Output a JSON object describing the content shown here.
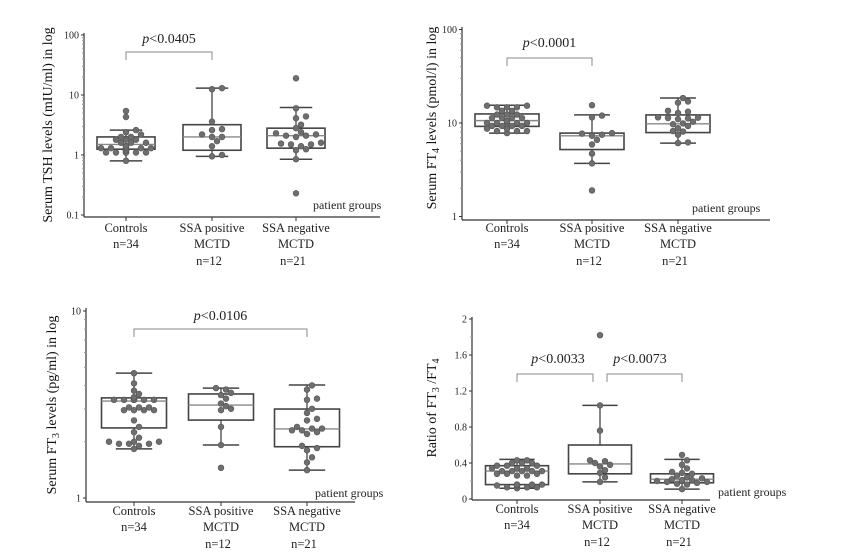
{
  "chart_data": [
    {
      "type": "box",
      "yscale": "log",
      "ylabel": {
        "pre": "Serum TSH levels  (mIU/ml) in log",
        "sub": "",
        "post": "",
        "sub2": "",
        "post2": ""
      },
      "xlabel": "patient groups",
      "ylim": [
        0.1,
        100
      ],
      "yticks": [
        "0.1",
        "1",
        "10",
        "100"
      ],
      "ytick_values": [
        0.1,
        1,
        10,
        100
      ],
      "categories": [
        {
          "lines": [
            "Controls",
            "n=34"
          ]
        },
        {
          "lines": [
            "SSA positive",
            "MCTD",
            "n=12"
          ]
        },
        {
          "lines": [
            "SSA negative",
            "MCTD",
            "n=21"
          ]
        }
      ],
      "boxes": [
        {
          "q1": 1.25,
          "median": 1.5,
          "q3": 2.0,
          "whisker_low": 0.8,
          "whisker_high": 2.6,
          "points": [
            0.8,
            1.1,
            1.1,
            1.1,
            1.1,
            1.1,
            1.1,
            1.2,
            1.2,
            1.2,
            1.2,
            1.2,
            1.3,
            1.3,
            1.3,
            1.3,
            1.3,
            1.4,
            1.4,
            1.4,
            1.4,
            1.6,
            1.6,
            1.6,
            1.8,
            1.8,
            1.8,
            2.0,
            2.0,
            2.2,
            2.4,
            2.6,
            4.3,
            5.4
          ]
        },
        {
          "q1": 1.2,
          "median": 2.0,
          "q3": 3.2,
          "whisker_low": 0.95,
          "whisker_high": 13,
          "points": [
            0.95,
            1.0,
            1.4,
            1.7,
            2.0,
            2.0,
            2.2,
            2.6,
            2.7,
            3.6,
            12.5,
            13
          ]
        },
        {
          "q1": 1.3,
          "median": 2.1,
          "q3": 2.8,
          "whisker_low": 0.85,
          "whisker_high": 6.2,
          "points": [
            0.23,
            0.85,
            1.2,
            1.25,
            1.4,
            1.5,
            1.5,
            1.55,
            1.6,
            2.0,
            2.1,
            2.1,
            2.2,
            2.3,
            2.4,
            2.8,
            3.2,
            4.1,
            4.4,
            6.0,
            19
          ]
        }
      ],
      "comparisons": [
        {
          "from": 0,
          "to": 1,
          "label_p": "p",
          "label_rest": "<0.0405"
        }
      ]
    },
    {
      "type": "box",
      "yscale": "log",
      "ylabel": {
        "pre": "Serum FT",
        "sub": "4",
        "post": " levels  (pmol/l) in log",
        "sub2": "",
        "post2": ""
      },
      "xlabel": "patient groups",
      "ylim": [
        1,
        100
      ],
      "yticks": [
        "1",
        "10",
        "100"
      ],
      "ytick_values": [
        1,
        10,
        100
      ],
      "categories": [
        {
          "lines": [
            "Controls",
            "n=34"
          ]
        },
        {
          "lines": [
            "SSA positive",
            "MCTD",
            "n=12"
          ]
        },
        {
          "lines": [
            "SSA negative",
            "MCTD",
            "n=21"
          ]
        }
      ],
      "boxes": [
        {
          "q1": 9.2,
          "median": 10.6,
          "q3": 12.5,
          "whisker_low": 7.8,
          "whisker_high": 15.5,
          "points": [
            7.8,
            8.2,
            8.2,
            8.2,
            8.7,
            8.7,
            8.7,
            9.3,
            9.3,
            9.3,
            9.3,
            10,
            10,
            10,
            10,
            10,
            10.5,
            10.5,
            10.5,
            10.5,
            11.3,
            11.3,
            11.3,
            11.3,
            12.3,
            12.3,
            12.3,
            13.5,
            13.5,
            14.7,
            14.7,
            14.7,
            15.3,
            15.3
          ]
        },
        {
          "q1": 5.2,
          "median": 7.3,
          "q3": 7.8,
          "whisker_low": 3.7,
          "whisker_high": 12.2,
          "points": [
            1.9,
            3.7,
            4.7,
            5.9,
            6.6,
            7.3,
            7.5,
            7.7,
            7.8,
            11.5,
            12,
            15.5
          ]
        },
        {
          "q1": 7.9,
          "median": 9.8,
          "q3": 12.2,
          "whisker_low": 6.1,
          "whisker_high": 18.5,
          "points": [
            6.1,
            6.2,
            7.5,
            8.1,
            8.2,
            8.8,
            9.3,
            9.7,
            9.9,
            10.3,
            11,
            11.2,
            11.3,
            11.4,
            11.5,
            12.8,
            13.2,
            13.5,
            16.5,
            17,
            18.5
          ]
        }
      ],
      "comparisons": [
        {
          "from": 0,
          "to": 1,
          "label_p": "p",
          "label_rest": "<0.0001"
        }
      ]
    },
    {
      "type": "box",
      "yscale": "log",
      "ylabel": {
        "pre": "Serum FT",
        "sub": "3",
        "post": "  levels (pg/ml) in log",
        "sub2": "",
        "post2": ""
      },
      "xlabel": "patient groups",
      "ylim": [
        1,
        10
      ],
      "yticks": [
        "1",
        "10"
      ],
      "ytick_values": [
        1,
        10
      ],
      "categories": [
        {
          "lines": [
            "Controls",
            "n=34"
          ]
        },
        {
          "lines": [
            "SSA positive",
            "MCTD",
            "n=12"
          ]
        },
        {
          "lines": [
            "SSA negative",
            "MCTD",
            "n=21"
          ]
        }
      ],
      "boxes": [
        {
          "q1": 2.37,
          "median": 3.3,
          "q3": 3.43,
          "whisker_low": 1.83,
          "whisker_high": 4.65,
          "points": [
            1.83,
            1.9,
            1.95,
            1.95,
            1.95,
            2.0,
            2.0,
            2.0,
            2.1,
            2.25,
            2.4,
            2.6,
            2.95,
            2.95,
            2.95,
            2.95,
            3.05,
            3.05,
            3.05,
            3.35,
            3.35,
            3.35,
            3.35,
            3.35,
            3.35,
            3.35,
            3.35,
            3.45,
            3.45,
            3.45,
            3.6,
            3.75,
            4.1,
            4.65
          ]
        },
        {
          "q1": 2.61,
          "median": 3.14,
          "q3": 3.6,
          "whisker_low": 1.92,
          "whisker_high": 3.87,
          "points": [
            1.45,
            1.92,
            2.4,
            2.95,
            3.0,
            3.1,
            3.2,
            3.4,
            3.55,
            3.65,
            3.8,
            3.87
          ]
        },
        {
          "q1": 1.88,
          "median": 2.34,
          "q3": 2.99,
          "whisker_low": 1.41,
          "whisker_high": 4.02,
          "points": [
            1.41,
            1.55,
            1.65,
            1.8,
            1.85,
            1.9,
            2.2,
            2.25,
            2.3,
            2.3,
            2.35,
            2.35,
            2.4,
            2.6,
            2.65,
            2.85,
            3.0,
            3.35,
            3.4,
            3.8,
            4.0
          ]
        }
      ],
      "comparisons": [
        {
          "from": 0,
          "to": 2,
          "label_p": "p",
          "label_rest": "<0.0106"
        }
      ]
    },
    {
      "type": "box",
      "yscale": "linear",
      "ylabel": {
        "pre": "Ratio of  FT",
        "sub": "3",
        "post": " /FT",
        "sub2": "4",
        "post2": ""
      },
      "xlabel": "patient groups",
      "ylim": [
        0,
        2
      ],
      "yticks": [
        "0",
        "0.4",
        "0.8",
        "1.2",
        "1.6",
        "2"
      ],
      "ytick_values": [
        0,
        0.4,
        0.8,
        1.2,
        1.6,
        2
      ],
      "categories": [
        {
          "lines": [
            "Controls",
            "n=34"
          ]
        },
        {
          "lines": [
            "SSA positive",
            "MCTD",
            "n=12"
          ]
        },
        {
          "lines": [
            "SSA negative",
            "MCTD",
            "n=21"
          ]
        }
      ],
      "boxes": [
        {
          "q1": 0.16,
          "median": 0.31,
          "q3": 0.37,
          "whisker_low": 0.12,
          "whisker_high": 0.44,
          "points": [
            0.12,
            0.13,
            0.13,
            0.13,
            0.15,
            0.15,
            0.15,
            0.15,
            0.15,
            0.16,
            0.16,
            0.16,
            0.16,
            0.26,
            0.26,
            0.28,
            0.28,
            0.28,
            0.31,
            0.31,
            0.31,
            0.31,
            0.31,
            0.34,
            0.34,
            0.34,
            0.37,
            0.37,
            0.37,
            0.4,
            0.4,
            0.4,
            0.43,
            0.43
          ]
        },
        {
          "q1": 0.28,
          "median": 0.39,
          "q3": 0.6,
          "whisker_low": 0.19,
          "whisker_high": 1.04,
          "points": [
            0.19,
            0.24,
            0.29,
            0.32,
            0.36,
            0.38,
            0.4,
            0.42,
            0.43,
            0.76,
            1.04,
            1.82
          ]
        },
        {
          "q1": 0.18,
          "median": 0.22,
          "q3": 0.28,
          "whisker_low": 0.11,
          "whisker_high": 0.44,
          "points": [
            0.11,
            0.16,
            0.17,
            0.18,
            0.19,
            0.19,
            0.2,
            0.2,
            0.21,
            0.21,
            0.22,
            0.23,
            0.24,
            0.26,
            0.28,
            0.29,
            0.3,
            0.34,
            0.38,
            0.43,
            0.49
          ]
        }
      ],
      "comparisons": [
        {
          "from": 0,
          "to": 1,
          "label_p": "p",
          "label_rest": "<0.0033"
        },
        {
          "from": 1,
          "to": 2,
          "label_p": "p",
          "label_rest": "<0.0073"
        }
      ]
    }
  ],
  "colors": {
    "point": "#6e6e6e",
    "box": "#444444",
    "median": "#888888",
    "bracket": "#8a8a8a"
  }
}
